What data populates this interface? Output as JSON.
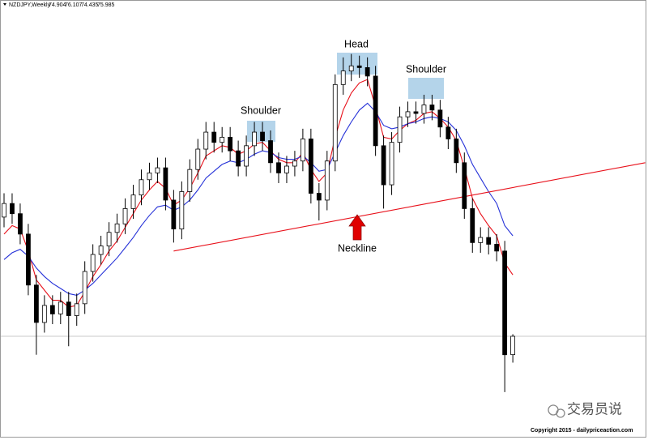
{
  "chart_data": {
    "type": "candlestick",
    "symbol": "NZDJPY,Weekly",
    "open": [
      83.0,
      83.8,
      83.2,
      82.0,
      79.0,
      76.8,
      77.8,
      77.3,
      78.0,
      77.2,
      77.9,
      79.8,
      80.8,
      81.3,
      82.1,
      82.6,
      83.5,
      84.3,
      85.2,
      85.6,
      85.9,
      84.0,
      82.3,
      84.5,
      85.8,
      87.0,
      88.0,
      87.4,
      87.7,
      86.9,
      86.0,
      87.2,
      88.0,
      87.5,
      86.2,
      85.6,
      86.0,
      86.3,
      87.6,
      84.4,
      84.0,
      86.3,
      90.8,
      91.6,
      91.9,
      91.8,
      91.3,
      87.2,
      84.9,
      87.4,
      88.9,
      89.2,
      89.1,
      89.6,
      89.3,
      88.3,
      87.6,
      86.2,
      83.5,
      81.5,
      81.8,
      81.4,
      81.0,
      74.904
    ],
    "high": [
      84.4,
      84.4,
      83.8,
      82.6,
      79.6,
      78.4,
      78.4,
      78.6,
      78.6,
      78.5,
      80.4,
      81.4,
      81.9,
      82.7,
      83.2,
      84.1,
      84.9,
      85.8,
      86.2,
      86.5,
      86.5,
      84.6,
      85.1,
      86.4,
      87.6,
      88.6,
      88.6,
      88.3,
      88.3,
      87.5,
      87.8,
      88.6,
      88.6,
      88.1,
      86.8,
      86.6,
      86.9,
      88.2,
      88.2,
      85.0,
      86.9,
      91.4,
      92.4,
      92.6,
      92.5,
      92.4,
      91.9,
      87.8,
      88.0,
      89.5,
      89.8,
      89.8,
      90.2,
      90.2,
      89.9,
      88.9,
      88.2,
      86.8,
      84.1,
      82.4,
      82.4,
      82.0,
      81.6,
      76.107
    ],
    "low": [
      82.4,
      82.6,
      81.4,
      78.4,
      74.9,
      76.2,
      76.7,
      76.7,
      75.4,
      76.6,
      77.3,
      79.2,
      80.2,
      80.7,
      81.5,
      82.0,
      82.9,
      83.7,
      84.6,
      85.0,
      83.4,
      81.5,
      81.7,
      83.9,
      85.2,
      86.4,
      86.8,
      86.8,
      86.3,
      85.4,
      85.4,
      86.6,
      86.9,
      85.6,
      85.0,
      85.0,
      85.4,
      85.7,
      83.8,
      82.8,
      83.4,
      85.7,
      90.2,
      91.0,
      91.2,
      90.7,
      86.6,
      83.5,
      84.3,
      86.8,
      88.3,
      88.5,
      88.5,
      88.7,
      87.7,
      87.0,
      85.6,
      82.9,
      80.9,
      80.9,
      80.8,
      80.4,
      72.7,
      74.435
    ],
    "close": [
      83.8,
      83.2,
      82.0,
      79.0,
      76.8,
      77.8,
      77.3,
      78.0,
      77.2,
      77.9,
      79.8,
      80.8,
      81.3,
      82.1,
      82.6,
      83.5,
      84.3,
      85.2,
      85.6,
      85.9,
      84.0,
      82.3,
      84.5,
      85.8,
      87.0,
      88.0,
      87.4,
      87.7,
      86.9,
      86.0,
      87.2,
      88.0,
      87.5,
      86.2,
      85.6,
      86.0,
      86.3,
      87.6,
      84.4,
      84.0,
      86.3,
      90.8,
      91.6,
      91.9,
      91.8,
      91.3,
      87.2,
      84.9,
      87.4,
      88.9,
      89.2,
      89.1,
      89.6,
      89.3,
      88.3,
      87.6,
      86.2,
      83.5,
      81.5,
      81.8,
      81.4,
      81.0,
      74.9,
      75.985
    ],
    "indicators": [
      {
        "color": "#e8101a",
        "values": [
          82.0,
          82.5,
          82.3,
          81.0,
          79.3,
          78.7,
          78.1,
          78.1,
          77.7,
          77.8,
          78.6,
          79.5,
          80.2,
          81.0,
          81.6,
          82.4,
          83.2,
          84.0,
          84.6,
          85.1,
          84.7,
          83.7,
          84.0,
          84.7,
          85.6,
          86.6,
          86.9,
          87.2,
          87.1,
          86.7,
          86.9,
          87.3,
          87.4,
          86.9,
          86.4,
          86.2,
          86.2,
          86.8,
          85.8,
          85.1,
          85.6,
          87.7,
          89.3,
          90.3,
          90.9,
          91.1,
          89.5,
          87.7,
          87.6,
          88.1,
          88.5,
          88.7,
          89.1,
          89.2,
          88.8,
          88.3,
          87.5,
          85.9,
          84.1,
          83.2,
          82.5,
          81.9,
          80.3,
          79.6
        ]
      },
      {
        "color": "#2632d8",
        "values": [
          80.5,
          80.9,
          81.1,
          80.7,
          80.0,
          79.5,
          79.1,
          78.8,
          78.5,
          78.4,
          78.7,
          79.1,
          79.6,
          80.1,
          80.6,
          81.2,
          81.8,
          82.5,
          83.1,
          83.6,
          83.7,
          83.4,
          83.6,
          84.0,
          84.6,
          85.3,
          85.7,
          86.1,
          86.3,
          86.2,
          86.4,
          86.7,
          86.9,
          86.8,
          86.5,
          86.4,
          86.4,
          86.6,
          86.2,
          85.7,
          85.8,
          86.8,
          87.8,
          88.6,
          89.3,
          89.7,
          89.2,
          88.4,
          88.2,
          88.3,
          88.5,
          88.6,
          88.8,
          88.9,
          88.8,
          88.6,
          88.1,
          87.2,
          86.1,
          85.3,
          84.5,
          83.8,
          82.5,
          81.9
        ]
      }
    ],
    "neckline": {
      "color": "#e8101a",
      "x": [
        21,
        79.4
      ],
      "values": [
        81.0,
        86.2
      ]
    },
    "ylim": [
      70.5,
      95.3
    ],
    "annotations": [
      "Shoulder",
      "Head",
      "Shoulder",
      "Neckline"
    ],
    "watermark": "交易员说",
    "copyright": "Copyright 2015 - dailypriceaction.com"
  }
}
